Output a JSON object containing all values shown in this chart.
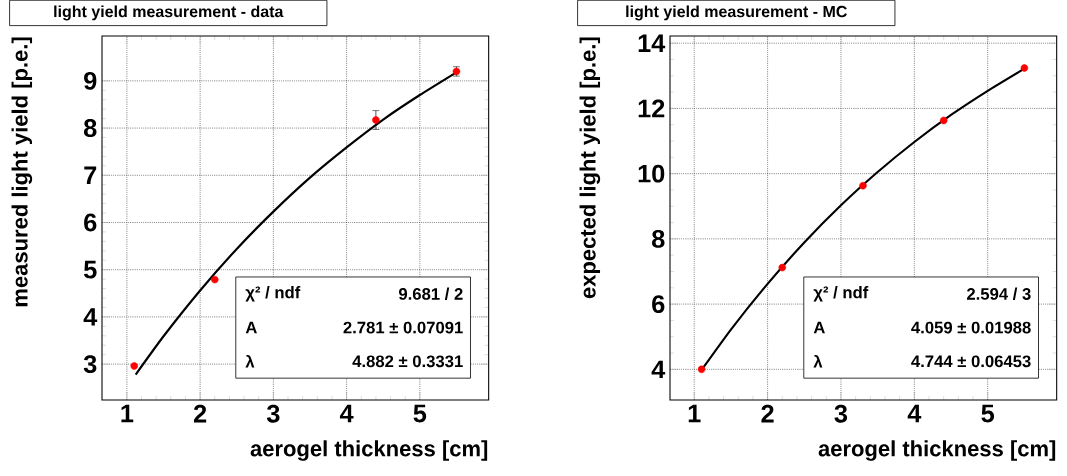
{
  "chart_data": [
    {
      "type": "scatter",
      "title": "light yield measurement - data",
      "xlabel": "aerogel thickness [cm]",
      "ylabel": "measured light yield [p.e.]",
      "xlim": [
        0.66,
        5.94
      ],
      "ylim": [
        2.24,
        9.95
      ],
      "xticks": [
        1,
        2,
        3,
        4,
        5
      ],
      "yticks": [
        3,
        4,
        5,
        6,
        7,
        8,
        9
      ],
      "grid": true,
      "marker": "circle",
      "series": [
        {
          "color": "#ff0000",
          "x": [
            1.1,
            2.2,
            4.4,
            5.5
          ],
          "values": [
            2.96,
            4.79,
            8.17,
            9.2
          ],
          "errors": [
            null,
            null,
            0.2,
            0.1
          ]
        },
        {
          "type": "line",
          "color": "#000000",
          "marker": "none",
          "x": [
            1.12,
            1.5,
            2,
            2.5,
            3,
            3.5,
            4,
            4.5,
            5,
            5.5
          ],
          "values": [
            2.78,
            3.59,
            4.56,
            5.44,
            6.23,
            6.95,
            7.59,
            8.18,
            8.7,
            9.18
          ]
        }
      ],
      "annotations": [
        "χ² / ndf",
        "9.681 / 2",
        "A",
        "2.781 ± 0.07091",
        "λ",
        "4.882 ± 0.3331"
      ]
    },
    {
      "type": "scatter",
      "title": "light yield measurement - MC",
      "xlabel": "aerogel thickness [cm]",
      "ylabel": "expected light yield [p.e.]",
      "xlim": [
        0.67,
        5.94
      ],
      "ylim": [
        3.06,
        14.22
      ],
      "xticks": [
        1,
        2,
        3,
        4,
        5
      ],
      "yticks": [
        4,
        6,
        8,
        10,
        12,
        14
      ],
      "grid": true,
      "marker": "circle",
      "series": [
        {
          "color": "#ff0000",
          "x": [
            1.1,
            2.2,
            3.3,
            4.4,
            5.5
          ],
          "values": [
            4.0,
            7.12,
            9.63,
            11.63,
            13.24
          ]
        },
        {
          "type": "line",
          "color": "#000000",
          "marker": "none",
          "x": [
            1.1,
            1.5,
            2,
            2.5,
            3,
            3.5,
            4,
            4.5,
            5,
            5.5
          ],
          "values": [
            3.98,
            5.22,
            6.62,
            7.89,
            9.03,
            10.05,
            10.97,
            11.8,
            12.54,
            13.22
          ]
        }
      ],
      "annotations": [
        "χ² / ndf",
        "2.594 / 3",
        "A",
        "4.059 ± 0.01988",
        "λ",
        "4.744 ± 0.06453"
      ]
    }
  ]
}
